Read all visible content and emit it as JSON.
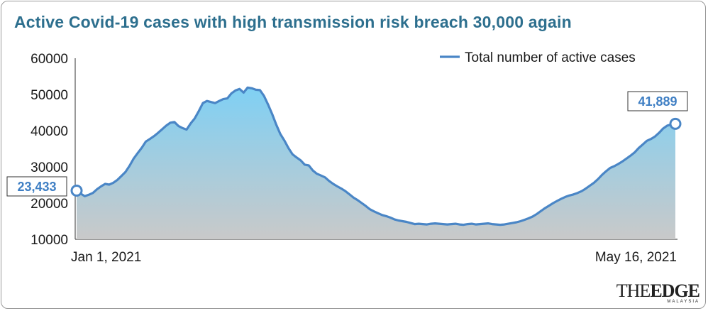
{
  "title": "Active Covid-19 cases with high transmission risk breach 30,000 again",
  "logo": {
    "the": "THE",
    "edge": "EDGE",
    "sub": "MALAYSIA"
  },
  "colors": {
    "line": "#4a86c6",
    "fill_top": "#7fd0f4",
    "fill_bottom": "#c9c9c9",
    "title": "#2d6f8e",
    "callout": "#3f7fc4"
  },
  "chart_data": {
    "type": "area",
    "title": "Active Covid-19 cases with high transmission risk breach 30,000 again",
    "legend": {
      "position": "top-right",
      "entries": [
        "Total number of active cases"
      ]
    },
    "series": [
      {
        "name": "Total number of active cases",
        "x_start": "Jan 1, 2021",
        "x_end": "May 16, 2021",
        "values": [
          23433,
          22600,
          21900,
          22300,
          22800,
          23800,
          24600,
          25300,
          25100,
          25600,
          26400,
          27500,
          28600,
          30300,
          32300,
          33800,
          35300,
          37000,
          37700,
          38500,
          39400,
          40400,
          41400,
          42200,
          42400,
          41300,
          40700,
          40300,
          42000,
          43400,
          45400,
          47600,
          48200,
          47900,
          47600,
          48200,
          48700,
          48900,
          50300,
          51100,
          51500,
          50500,
          51900,
          51700,
          51300,
          51200,
          49600,
          47200,
          44600,
          41700,
          39100,
          37300,
          35200,
          33500,
          32600,
          31800,
          30600,
          30400,
          29000,
          28100,
          27600,
          27100,
          26100,
          25300,
          24600,
          24000,
          23300,
          22400,
          21500,
          20800,
          20000,
          19200,
          18300,
          17700,
          17200,
          16700,
          16400,
          16000,
          15500,
          15200,
          15000,
          14800,
          14500,
          14200,
          14300,
          14200,
          14100,
          14300,
          14400,
          14300,
          14200,
          14100,
          14200,
          14300,
          14100,
          14000,
          14200,
          14300,
          14100,
          14200,
          14300,
          14400,
          14200,
          14100,
          14000,
          14100,
          14300,
          14500,
          14700,
          15000,
          15400,
          15800,
          16300,
          17000,
          17800,
          18600,
          19300,
          20000,
          20600,
          21200,
          21700,
          22100,
          22400,
          22800,
          23300,
          24000,
          24800,
          25600,
          26600,
          27800,
          28800,
          29700,
          30200,
          30800,
          31500,
          32300,
          33100,
          34000,
          35200,
          36200,
          37200,
          37700,
          38400,
          39400,
          40600,
          41400,
          41700,
          41889
        ]
      }
    ],
    "xlabel": "",
    "ylabel": "",
    "x_tick_labels": [
      "Jan 1, 2021",
      "May 16, 2021"
    ],
    "ylim": [
      10000,
      60000
    ],
    "y_ticks": [
      "60000",
      "50000",
      "40000",
      "30000",
      "20000",
      "10000"
    ],
    "annotations": [
      {
        "label": "23,433",
        "point": "first"
      },
      {
        "label": "41,889",
        "point": "last"
      }
    ],
    "grid": false
  }
}
